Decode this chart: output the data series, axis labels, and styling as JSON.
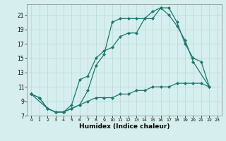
{
  "xlabel": "Humidex (Indice chaleur)",
  "background_color": "#d6eeee",
  "line_color": "#1a7a6e",
  "grid_color": "#b8d8d8",
  "xlim": [
    -0.5,
    23.5
  ],
  "ylim": [
    7,
    22.5
  ],
  "xticks": [
    0,
    1,
    2,
    3,
    4,
    5,
    6,
    7,
    8,
    9,
    10,
    11,
    12,
    13,
    14,
    15,
    16,
    17,
    18,
    19,
    20,
    21,
    22,
    23
  ],
  "yticks": [
    7,
    9,
    11,
    13,
    15,
    17,
    19,
    21
  ],
  "series": [
    {
      "x": [
        0,
        1,
        2,
        3,
        4,
        5,
        6,
        7,
        8,
        9,
        10,
        11,
        12,
        13,
        14,
        15,
        16,
        17,
        18,
        19,
        20,
        22
      ],
      "y": [
        10,
        9.5,
        8,
        7.5,
        7.5,
        8.5,
        12,
        12.5,
        15,
        16,
        16.5,
        18,
        18.5,
        18.5,
        20.5,
        20.5,
        22,
        21,
        19.5,
        17.5,
        14.5,
        11
      ]
    },
    {
      "x": [
        0,
        1,
        2,
        3,
        4,
        5,
        6,
        7,
        8,
        9,
        10,
        11,
        12,
        13,
        14,
        15,
        16,
        17,
        18,
        19,
        20,
        21,
        22
      ],
      "y": [
        10,
        9.5,
        8,
        7.5,
        7.5,
        8,
        8.5,
        10.5,
        14,
        15.5,
        20,
        20.5,
        20.5,
        20.5,
        20.5,
        21.5,
        22,
        22,
        20,
        17,
        15,
        14.5,
        11
      ]
    },
    {
      "x": [
        0,
        2,
        3,
        4,
        5,
        6,
        7,
        8,
        9,
        10,
        11,
        12,
        13,
        14,
        15,
        16,
        17,
        18,
        19,
        20,
        21,
        22
      ],
      "y": [
        10,
        8,
        7.5,
        7.5,
        8,
        8.5,
        9,
        9.5,
        9.5,
        9.5,
        10,
        10,
        10.5,
        10.5,
        11,
        11,
        11,
        11.5,
        11.5,
        11.5,
        11.5,
        11
      ]
    }
  ]
}
